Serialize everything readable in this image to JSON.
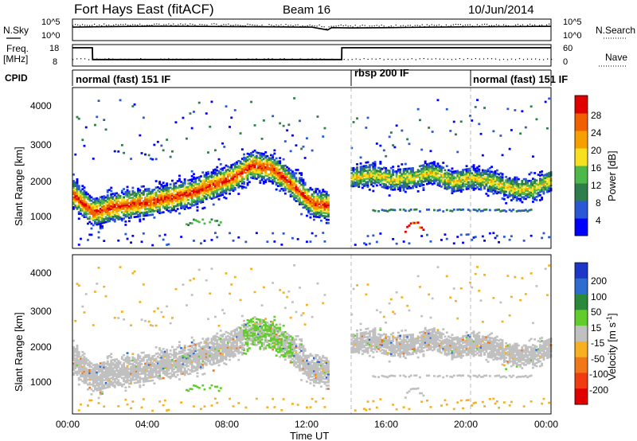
{
  "header": {
    "title": "Fort Hays East (fitACF)",
    "beam": "Beam 16",
    "date": "10/Jun/2014"
  },
  "noise_panel": {
    "left_label": "N.Sky",
    "ticks": [
      "10^5",
      "10^0"
    ],
    "right_ticks": [
      "10^5",
      "10^0"
    ],
    "right_label": "N.Search"
  },
  "freq_panel": {
    "left_label": "Freq.",
    "left_unit": "[MHz]",
    "ticks": [
      "18",
      "8"
    ],
    "right_ticks": [
      "60",
      "0"
    ],
    "right_label": "Nave"
  },
  "cpid_panel": {
    "label": "CPID",
    "segments": [
      {
        "text": "normal (fast) 151 IF",
        "start_h": 0,
        "end_h": 13.5
      },
      {
        "text": "rbsp 200 IF",
        "start_h": 14,
        "end_h": 20
      },
      {
        "text": "normal (fast) 151 IF",
        "start_h": 20,
        "end_h": 24
      }
    ]
  },
  "axes": {
    "ylabel": "Slant Range [km]",
    "yticks": [
      "4000",
      "3000",
      "2000",
      "1000"
    ],
    "xticks": [
      "00:00",
      "04:00",
      "08:00",
      "12:00",
      "16:00",
      "20:00",
      "00:00"
    ],
    "xlabel": "Time UT"
  },
  "power_colorbar": {
    "label": "Power [dB]",
    "ticks": [
      "28",
      "24",
      "20",
      "16",
      "12",
      "8",
      "4"
    ],
    "colors": [
      "#0000ff",
      "#2a57d6",
      "#2f7d4b",
      "#4fb84a",
      "#f6e020",
      "#f6a000",
      "#f06000",
      "#e00000"
    ]
  },
  "velocity_colorbar": {
    "label": "Velocity [m s",
    "label_sup": "-1",
    "label_end": "]",
    "ticks": [
      "200",
      "100",
      "50",
      "15",
      "-15",
      "-50",
      "-100",
      "-200"
    ],
    "colors": [
      "#1d35c8",
      "#2f6cd0",
      "#2a8a3a",
      "#62cc2a",
      "#c0c0c0",
      "#f6b020",
      "#f07818",
      "#f03c10",
      "#e00000"
    ]
  },
  "chart_data": [
    {
      "type": "line",
      "title": "",
      "panel": "noise (N.Sky / N.Search)",
      "x": [
        0,
        2,
        4,
        6,
        8,
        10,
        12,
        12.8,
        13,
        14,
        16,
        18,
        20,
        22,
        24
      ],
      "series": [
        {
          "name": "N.Sky",
          "values": [
            2000,
            3000,
            4000,
            3500,
            3000,
            2500,
            2000,
            300,
            1500,
            1200,
            1500,
            2000,
            2500,
            3000,
            3500
          ]
        }
      ],
      "xlim": [
        0,
        24
      ],
      "yscale": "log",
      "ylim": [
        1,
        100000
      ]
    },
    {
      "type": "line",
      "title": "",
      "panel": "frequency / Nave",
      "x": [
        0,
        1,
        1.01,
        13.5,
        13.51,
        24
      ],
      "series": [
        {
          "name": "Freq.",
          "values": [
            17.5,
            17.5,
            10.5,
            10.5,
            17.5,
            17.5
          ]
        }
      ],
      "xlim": [
        0,
        24
      ],
      "ylim": [
        8,
        18
      ]
    },
    {
      "type": "heatmap",
      "title": "",
      "panel": "power",
      "xlabel": "Time UT",
      "ylabel": "Slant Range [km]",
      "xlim": [
        0,
        24
      ],
      "ylim": [
        180,
        4600
      ],
      "colorbar": "Power [dB]",
      "ridge": {
        "x": [
          0,
          1,
          2,
          4,
          6,
          8,
          9,
          10,
          11,
          12,
          12.7
        ],
        "values": [
          1650,
          1150,
          1300,
          1450,
          1700,
          2100,
          2450,
          2350,
          1900,
          1400,
          1350
        ]
      },
      "ridge2": {
        "x": [
          14,
          15,
          16,
          17,
          18,
          19,
          20,
          21,
          22,
          23,
          24
        ],
        "values": [
          2100,
          2200,
          2050,
          2100,
          2250,
          2000,
          2100,
          2000,
          1800,
          1800,
          2050
        ]
      }
    },
    {
      "type": "heatmap",
      "title": "",
      "panel": "velocity",
      "xlabel": "Time UT",
      "ylabel": "Slant Range [km]",
      "xlim": [
        0,
        24
      ],
      "ylim": [
        180,
        4600
      ],
      "colorbar": "Velocity [m s-1]"
    }
  ]
}
